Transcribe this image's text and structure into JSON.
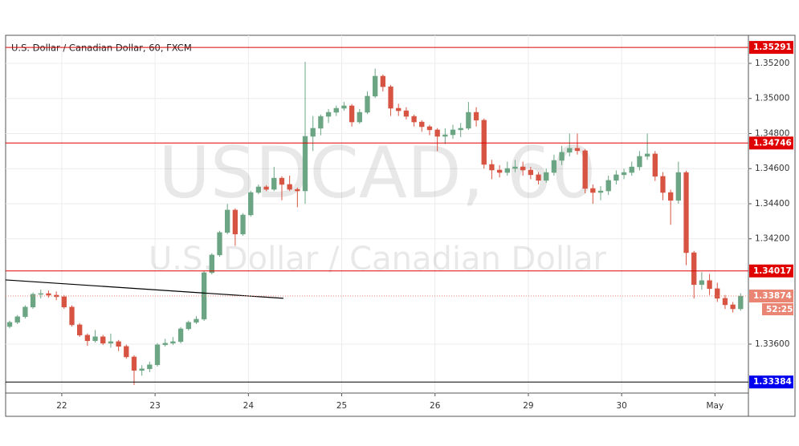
{
  "chart_data": {
    "type": "candlestick",
    "title": "U.S. Dollar / Canadian Dollar, 60, FXCM",
    "watermark": "USDCAD, 60",
    "watermark_subtitle": "U.S. Dollar / Canadian Dollar",
    "up_color": "#6ba583",
    "down_color": "#d75442",
    "grid": true,
    "candles": {
      "open": [
        1.337,
        1.33724,
        1.33756,
        1.33811,
        1.33884,
        1.33888,
        1.33879,
        1.3387,
        1.33811,
        1.3371,
        1.33651,
        1.33619,
        1.33642,
        1.33605,
        1.33614,
        1.33587,
        1.33527,
        1.3345,
        1.33459,
        1.33482,
        1.33596,
        1.33605,
        1.33614,
        1.33687,
        1.33724,
        1.33742,
        1.34007,
        1.34108,
        1.34236,
        1.34364,
        1.34227,
        1.34336,
        1.34464,
        1.34496,
        1.34482,
        1.34546,
        1.3451,
        1.34482,
        1.34473,
        1.34784,
        1.3483,
        1.34898,
        1.34921,
        1.34944,
        1.34958,
        1.34866,
        1.34921,
        1.35013,
        1.35127,
        1.35067,
        1.34944,
        1.3493,
        1.34898,
        1.34866,
        1.34839,
        1.34821,
        1.34784,
        1.34793,
        1.34821,
        1.3483,
        1.34921,
        1.34876,
        1.34624,
        1.34592,
        1.34578,
        1.34601,
        1.3461,
        1.34592,
        1.34565,
        1.34533,
        1.34578,
        1.34647,
        1.34693,
        1.34716,
        1.34702,
        1.34487,
        1.34464,
        1.34473,
        1.34533,
        1.34565,
        1.34578,
        1.3461,
        1.3467,
        1.34684,
        1.34556,
        1.34464,
        1.34419,
        1.34578,
        1.34121,
        1.33939,
        1.33962,
        1.33916,
        1.33861,
        1.33824,
        1.33801
      ],
      "high": [
        1.33734,
        1.33766,
        1.33821,
        1.33894,
        1.3391,
        1.33905,
        1.339,
        1.3388,
        1.33821,
        1.3372,
        1.33661,
        1.3368,
        1.33652,
        1.3366,
        1.33624,
        1.33597,
        1.33537,
        1.3348,
        1.335,
        1.33606,
        1.3363,
        1.3364,
        1.33697,
        1.33734,
        1.3376,
        1.34017,
        1.34118,
        1.34246,
        1.344,
        1.34374,
        1.34346,
        1.34474,
        1.3451,
        1.34506,
        1.3461,
        1.34556,
        1.3456,
        1.34492,
        1.35209,
        1.349,
        1.34908,
        1.3494,
        1.3496,
        1.3498,
        1.34968,
        1.3494,
        1.3504,
        1.3517,
        1.35137,
        1.35077,
        1.3497,
        1.3495,
        1.34908,
        1.34876,
        1.34849,
        1.34831,
        1.3483,
        1.3485,
        1.3486,
        1.3498,
        1.3495,
        1.34886,
        1.3465,
        1.3462,
        1.3464,
        1.3465,
        1.3464,
        1.3461,
        1.3458,
        1.346,
        1.3468,
        1.3473,
        1.348,
        1.348,
        1.34712,
        1.3451,
        1.345,
        1.3456,
        1.3459,
        1.346,
        1.3464,
        1.347,
        1.348,
        1.347,
        1.3458,
        1.3448,
        1.3464,
        1.34588,
        1.34131,
        1.3401,
        1.34,
        1.3395,
        1.3388,
        1.3384,
        1.3389
      ],
      "low": [
        1.3369,
        1.33714,
        1.33746,
        1.33801,
        1.3386,
        1.33865,
        1.3385,
        1.33801,
        1.337,
        1.33641,
        1.3359,
        1.33609,
        1.33595,
        1.3358,
        1.3356,
        1.33517,
        1.33367,
        1.3342,
        1.3344,
        1.33472,
        1.33586,
        1.33595,
        1.33604,
        1.33677,
        1.33714,
        1.33732,
        1.33997,
        1.34098,
        1.34226,
        1.3416,
        1.34217,
        1.34326,
        1.34454,
        1.34472,
        1.34472,
        1.3442,
        1.34472,
        1.3438,
        1.344,
        1.347,
        1.3479,
        1.3486,
        1.349,
        1.3493,
        1.3484,
        1.34856,
        1.34911,
        1.35003,
        1.3504,
        1.349,
        1.349,
        1.3488,
        1.3484,
        1.3481,
        1.3479,
        1.347,
        1.3474,
        1.3477,
        1.3478,
        1.3482,
        1.3484,
        1.346,
        1.3454,
        1.3455,
        1.3456,
        1.3458,
        1.3456,
        1.3454,
        1.3451,
        1.3452,
        1.3456,
        1.3462,
        1.3467,
        1.3468,
        1.3446,
        1.344,
        1.3442,
        1.3445,
        1.3451,
        1.3454,
        1.3456,
        1.3459,
        1.3465,
        1.3453,
        1.3442,
        1.3428,
        1.344,
        1.3405,
        1.3386,
        1.3391,
        1.3388,
        1.3384,
        1.338,
        1.3378,
        1.33791
      ],
      "close": [
        1.33724,
        1.33756,
        1.33811,
        1.33884,
        1.33888,
        1.33879,
        1.3387,
        1.33811,
        1.3371,
        1.33651,
        1.33619,
        1.33642,
        1.33605,
        1.33614,
        1.33587,
        1.33527,
        1.3345,
        1.33459,
        1.33482,
        1.33596,
        1.33605,
        1.33614,
        1.33687,
        1.33724,
        1.33742,
        1.34007,
        1.34108,
        1.34236,
        1.34364,
        1.34227,
        1.34336,
        1.34464,
        1.34496,
        1.34482,
        1.34546,
        1.3451,
        1.34482,
        1.34473,
        1.34784,
        1.3483,
        1.34898,
        1.34921,
        1.34944,
        1.34958,
        1.34866,
        1.34921,
        1.35013,
        1.35127,
        1.35067,
        1.34944,
        1.3493,
        1.34898,
        1.34866,
        1.34839,
        1.34821,
        1.34784,
        1.34793,
        1.34821,
        1.3483,
        1.34921,
        1.34876,
        1.34624,
        1.34592,
        1.34578,
        1.34601,
        1.3461,
        1.34592,
        1.34565,
        1.34533,
        1.34578,
        1.34647,
        1.34693,
        1.34716,
        1.34702,
        1.34487,
        1.34464,
        1.34473,
        1.34533,
        1.34565,
        1.34578,
        1.3461,
        1.3467,
        1.34684,
        1.34556,
        1.34464,
        1.34419,
        1.34578,
        1.34121,
        1.33939,
        1.33962,
        1.33916,
        1.33861,
        1.33824,
        1.33801,
        1.33874
      ]
    },
    "xlim": [
      -0.52,
      95.0
    ],
    "xticks": [
      {
        "value": 6.7,
        "label": "22"
      },
      {
        "value": 18.7,
        "label": "23"
      },
      {
        "value": 30.7,
        "label": "24"
      },
      {
        "value": 42.7,
        "label": "25"
      },
      {
        "value": 54.7,
        "label": "26"
      },
      {
        "value": 66.7,
        "label": "29"
      },
      {
        "value": 78.7,
        "label": "30"
      },
      {
        "value": 90.7,
        "label": "May"
      }
    ],
    "ylim": [
      1.33321,
      1.3536
    ],
    "yticks": [
      {
        "value": 1.336,
        "label": "1.33600"
      },
      {
        "value": 1.342,
        "label": "1.34200"
      },
      {
        "value": 1.344,
        "label": "1.34400"
      },
      {
        "value": 1.346,
        "label": "1.34600"
      },
      {
        "value": 1.348,
        "label": "1.34800"
      },
      {
        "value": 1.35,
        "label": "1.35000"
      },
      {
        "value": 1.352,
        "label": "1.35200"
      }
    ],
    "levels": [
      {
        "value": 1.35291,
        "color": "#e00000"
      },
      {
        "value": 1.34746,
        "color": "#e00000"
      },
      {
        "value": 1.34017,
        "color": "#e00000"
      },
      {
        "value": 1.33384,
        "color": "#000000",
        "label_color": "#0000ee"
      }
    ],
    "trend_line": {
      "x": [
        -0.52,
        35.2
      ],
      "y": [
        1.33966,
        1.33861
      ],
      "color": "#000000"
    },
    "last_price": 1.33874,
    "last_price_color": "#e98572",
    "countdown": "52:25"
  }
}
